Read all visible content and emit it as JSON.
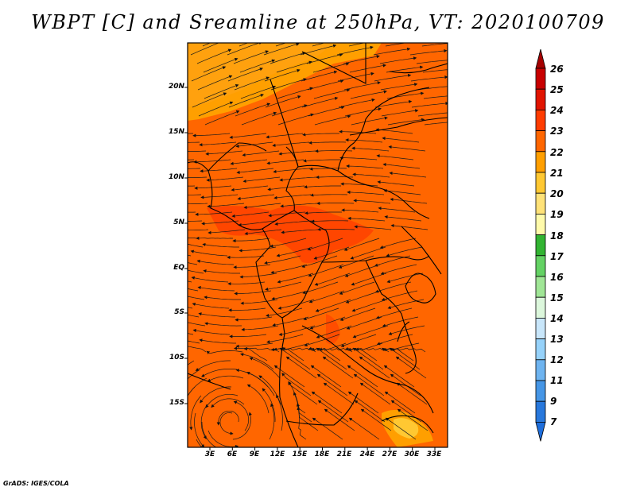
{
  "title": "WBPT [C] and Sreamline at 250hPa, VT: 2020100709",
  "credit": "GrADS: IGES/COLA",
  "map": {
    "lat_labels": [
      "20N",
      "15N",
      "10N",
      "5N",
      "EQ",
      "5S",
      "10S",
      "15S"
    ],
    "lon_labels": [
      "3E",
      "6E",
      "9E",
      "12E",
      "15E",
      "18E",
      "21E",
      "24E",
      "27E",
      "30E",
      "33E"
    ],
    "field_dominant_range": "22-23",
    "background_color": "#ff6600"
  },
  "colorbar": {
    "levels": [
      "26",
      "25",
      "24",
      "23",
      "22",
      "21",
      "20",
      "19",
      "18",
      "17",
      "16",
      "15",
      "14",
      "13",
      "12",
      "11",
      "9",
      "7"
    ],
    "colors": [
      "#a50000",
      "#c80000",
      "#e11400",
      "#ff3c00",
      "#ff6600",
      "#ff9f00",
      "#ffc832",
      "#ffe278",
      "#fffaaa",
      "#32b432",
      "#64d264",
      "#a0e696",
      "#dcf7dc",
      "#c8e6fa",
      "#96d2fa",
      "#6eb4f0",
      "#4696e6",
      "#2878dc",
      "#1e6edc"
    ]
  }
}
